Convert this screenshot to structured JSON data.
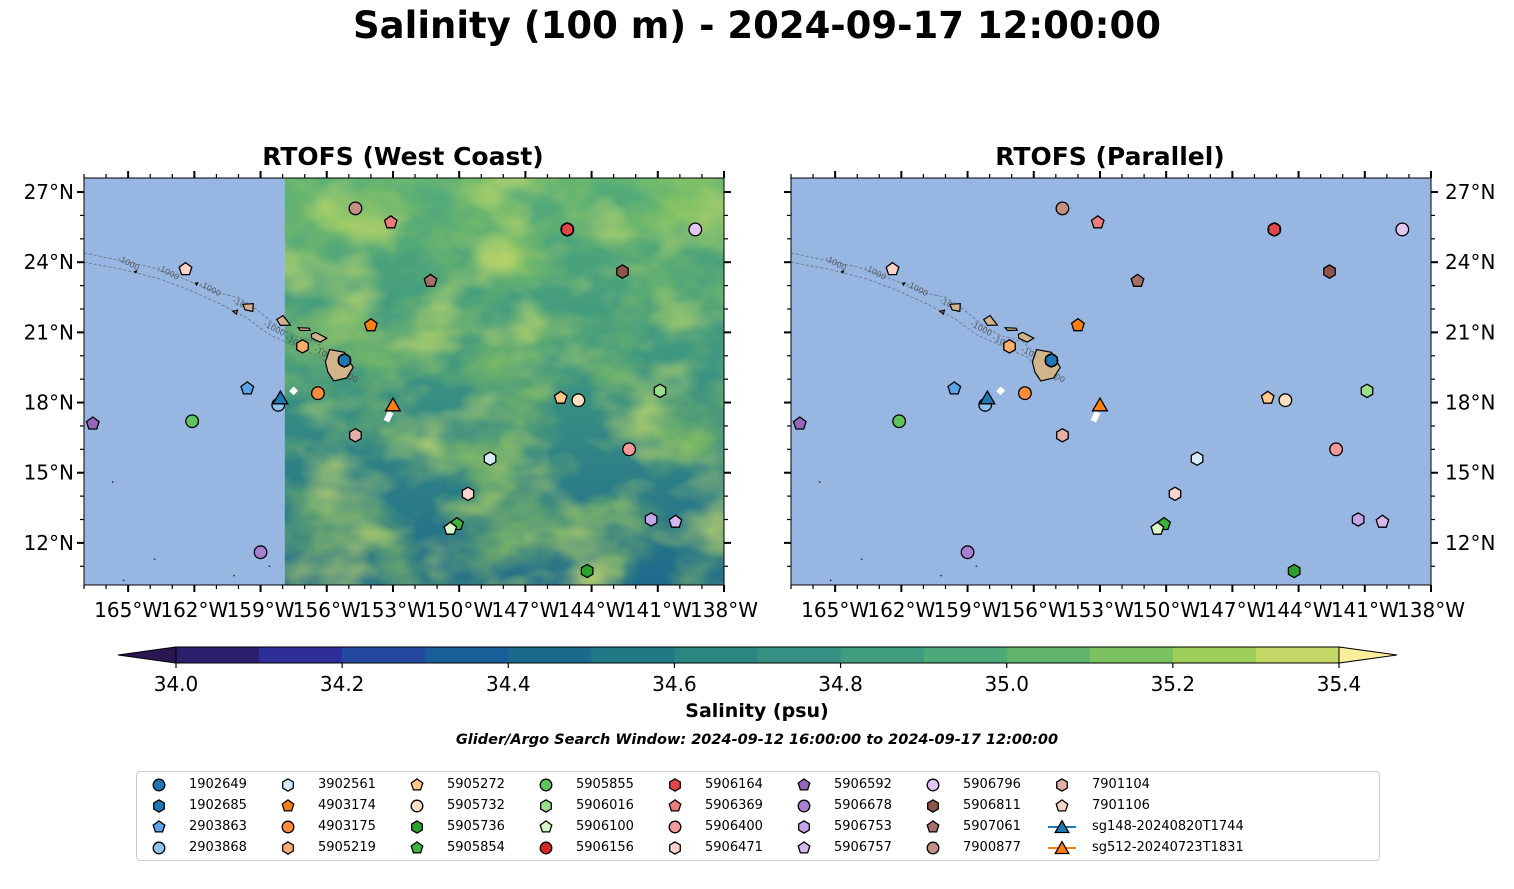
{
  "title": "Salinity (100 m) - 2024-09-17 12:00:00",
  "panels": [
    {
      "title": "RTOFS (West Coast)",
      "model_field": true
    },
    {
      "title": "RTOFS (Parallel)",
      "model_field": false
    }
  ],
  "colors": {
    "land": "#d2b48c",
    "ocean_nodata": "#97b6e1",
    "field_base": "#3b9a82"
  },
  "chart_data": {
    "type": "heatmap",
    "map_extent": {
      "lon": [
        -167,
        -138
      ],
      "lat": [
        10.2,
        27.6
      ]
    },
    "lon_ticks": [
      {
        "value": -165,
        "label": "165°W"
      },
      {
        "value": -162,
        "label": "162°W"
      },
      {
        "value": -159,
        "label": "159°W"
      },
      {
        "value": -156,
        "label": "156°W"
      },
      {
        "value": -153,
        "label": "153°W"
      },
      {
        "value": -150,
        "label": "150°W"
      },
      {
        "value": -147,
        "label": "147°W"
      },
      {
        "value": -144,
        "label": "144°W"
      },
      {
        "value": -141,
        "label": "141°W"
      },
      {
        "value": -138,
        "label": "138°W"
      }
    ],
    "lat_ticks": [
      {
        "value": 27,
        "label": "27°N"
      },
      {
        "value": 24,
        "label": "24°N"
      },
      {
        "value": 21,
        "label": "21°N"
      },
      {
        "value": 18,
        "label": "18°N"
      },
      {
        "value": 15,
        "label": "15°N"
      },
      {
        "value": 12,
        "label": "12°N"
      }
    ],
    "contour_label": "-1000",
    "model_field_lon_min": -157.9,
    "colorbar": {
      "label": "Salinity (psu)",
      "levels": [
        34.0,
        34.1,
        34.2,
        34.3,
        34.4,
        34.5,
        34.6,
        34.7,
        34.8,
        34.9,
        35.0,
        35.1,
        35.2,
        35.3,
        35.4
      ],
      "colors": [
        "#2a1e6d",
        "#2f2d98",
        "#24499f",
        "#1a5e99",
        "#1b6a8d",
        "#207985",
        "#2b8581",
        "#358f82",
        "#3f9c7e",
        "#4da97a",
        "#61b46b",
        "#7cc15f",
        "#9dce5a",
        "#c2d766",
        "#e6e77d"
      ],
      "under_color": "#2a1651",
      "over_color": "#fbee9a",
      "tick_labels": [
        "34.0",
        "34.2",
        "34.4",
        "34.6",
        "34.8",
        "35.0",
        "35.2",
        "35.4"
      ],
      "tick_values": [
        34.0,
        34.2,
        34.4,
        34.6,
        34.8,
        35.0,
        35.2,
        35.4
      ]
    },
    "search_window": "Glider/Argo Search Window: 2024-09-12 16:00:00 to 2024-09-17 12:00:00",
    "series": [
      {
        "name": "1902649",
        "marker": "circle",
        "color": "#1f77b4",
        "lon": -155.2,
        "lat": 19.8
      },
      {
        "name": "1902685",
        "marker": "hexagon",
        "color": "#1f77b4",
        "lon": -155.2,
        "lat": 19.8
      },
      {
        "name": "2903863",
        "marker": "pentagon",
        "color": "#5aa4e8",
        "lon": -159.6,
        "lat": 18.6
      },
      {
        "name": "2903868",
        "marker": "circle",
        "color": "#8ec4ee",
        "lon": -158.2,
        "lat": 17.9
      },
      {
        "name": "3902561",
        "marker": "hexagon",
        "color": "#d6ebfa",
        "lon": -148.6,
        "lat": 15.6
      },
      {
        "name": "4903174",
        "marker": "pentagon",
        "color": "#ff7f0e",
        "lon": -154.0,
        "lat": 21.3
      },
      {
        "name": "4903175",
        "marker": "circle",
        "color": "#fd8d3c",
        "lon": -156.4,
        "lat": 18.4
      },
      {
        "name": "5905219",
        "marker": "hexagon",
        "color": "#fdae6b",
        "lon": -157.1,
        "lat": 20.4
      },
      {
        "name": "5905272",
        "marker": "pentagon",
        "color": "#fdc88a",
        "lon": -145.4,
        "lat": 18.2
      },
      {
        "name": "5905732",
        "marker": "circle",
        "color": "#fde0c2",
        "lon": -144.6,
        "lat": 18.1
      },
      {
        "name": "5905736",
        "marker": "hexagon",
        "color": "#2ca02c",
        "lon": -144.2,
        "lat": 10.8
      },
      {
        "name": "5905854",
        "marker": "pentagon",
        "color": "#3cb43c",
        "lon": -150.1,
        "lat": 12.8
      },
      {
        "name": "5905855",
        "marker": "circle",
        "color": "#5fc35f",
        "lon": -162.1,
        "lat": 17.2
      },
      {
        "name": "5906016",
        "marker": "hexagon",
        "color": "#98df8a",
        "lon": -140.9,
        "lat": 18.5
      },
      {
        "name": "5906100",
        "marker": "pentagon",
        "color": "#d8f5c8",
        "lon": -150.4,
        "lat": 12.6
      },
      {
        "name": "5906156",
        "marker": "circle",
        "color": "#d62728",
        "lon": -145.1,
        "lat": 25.4
      },
      {
        "name": "5906164",
        "marker": "hexagon",
        "color": "#e0464a",
        "lon": -145.1,
        "lat": 25.4
      },
      {
        "name": "5906369",
        "marker": "pentagon",
        "color": "#ef7b7b",
        "lon": -153.1,
        "lat": 25.7
      },
      {
        "name": "5906400",
        "marker": "circle",
        "color": "#f39a9a",
        "lon": -142.3,
        "lat": 16.0
      },
      {
        "name": "5906471",
        "marker": "hexagon",
        "color": "#fad3d2",
        "lon": -149.6,
        "lat": 14.1
      },
      {
        "name": "5906592",
        "marker": "pentagon",
        "color": "#9467bd",
        "lon": -166.6,
        "lat": 17.1
      },
      {
        "name": "5906678",
        "marker": "circle",
        "color": "#a97fd0",
        "lon": -159.0,
        "lat": 11.6
      },
      {
        "name": "5906753",
        "marker": "hexagon",
        "color": "#c5a5e8",
        "lon": -141.3,
        "lat": 13.0
      },
      {
        "name": "5906757",
        "marker": "pentagon",
        "color": "#d6b8f0",
        "lon": -140.2,
        "lat": 12.9
      },
      {
        "name": "5906796",
        "marker": "circle",
        "color": "#e2c7f5",
        "lon": -139.3,
        "lat": 25.4
      },
      {
        "name": "5906811",
        "marker": "hexagon",
        "color": "#8c564b",
        "lon": -142.6,
        "lat": 23.6
      },
      {
        "name": "5907061",
        "marker": "pentagon",
        "color": "#a47068",
        "lon": -151.3,
        "lat": 23.2
      },
      {
        "name": "7900877",
        "marker": "circle",
        "color": "#c49084",
        "lon": -154.7,
        "lat": 26.3
      },
      {
        "name": "7901104",
        "marker": "hexagon",
        "color": "#e2b0a5",
        "lon": -154.7,
        "lat": 16.6
      },
      {
        "name": "7901106",
        "marker": "pentagon",
        "color": "#fcd4c8",
        "lon": -162.4,
        "lat": 23.7
      },
      {
        "name": "sg148-20240820T1744",
        "marker": "triangle",
        "color": "#1f77b4",
        "lon": -158.1,
        "lat": 18.2,
        "line": true
      },
      {
        "name": "sg512-20240723T1831",
        "marker": "triangle",
        "color": "#ff7f0e",
        "lon": -153.0,
        "lat": 17.9,
        "line": true
      }
    ]
  }
}
